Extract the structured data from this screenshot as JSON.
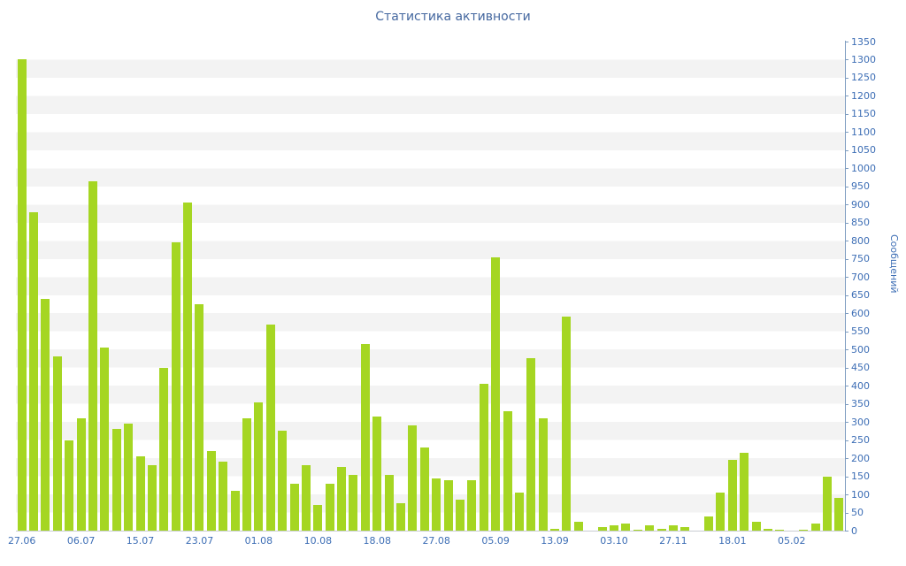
{
  "title": "Статистика активности",
  "chart_data": {
    "type": "bar",
    "title": "Статистика активности",
    "xlabel": "",
    "ylabel": "Сообщений",
    "ylim": [
      0,
      1350
    ],
    "y_tick_step": 50,
    "grid": "horizontal-bands",
    "legend": "none",
    "bar_color": "#a5d622",
    "axis_text_color": "#3d6eb5",
    "axis_line_color": "#7d9cc0",
    "title_color": "#44679f",
    "x_tick_labels": [
      "27.06",
      "06.07",
      "15.07",
      "23.07",
      "01.08",
      "10.08",
      "18.08",
      "27.08",
      "05.09",
      "13.09",
      "03.10",
      "27.11",
      "18.01",
      "05.02"
    ],
    "x_tick_every": 5,
    "values": [
      1300,
      880,
      640,
      480,
      250,
      310,
      965,
      505,
      280,
      295,
      205,
      180,
      450,
      795,
      905,
      625,
      220,
      190,
      110,
      310,
      355,
      570,
      275,
      130,
      180,
      70,
      130,
      175,
      155,
      515,
      315,
      155,
      75,
      290,
      230,
      145,
      140,
      85,
      140,
      405,
      755,
      330,
      105,
      475,
      310,
      5,
      590,
      25,
      0,
      10,
      15,
      20,
      3,
      15,
      5,
      15,
      10,
      0,
      40,
      105,
      195,
      215,
      25,
      5,
      3,
      0,
      3,
      20,
      150,
      90
    ]
  }
}
